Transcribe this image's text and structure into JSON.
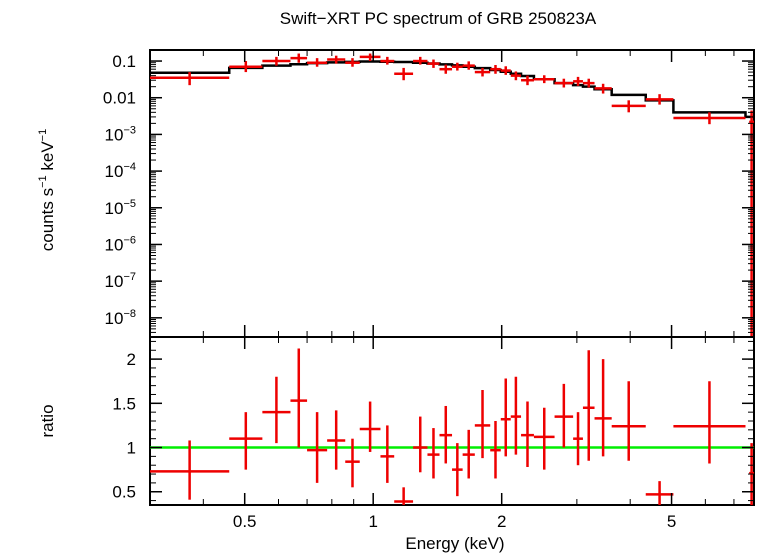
{
  "chart_data": {
    "title": "Swift−XRT PC spectrum of GRB 250823A",
    "xlabel": "Energy (keV)",
    "xscale": "log",
    "xlim": [
      0.3,
      7.8
    ],
    "x_ticks": [
      {
        "value": 0.5,
        "label": "0.5"
      },
      {
        "value": 1,
        "label": "1"
      },
      {
        "value": 2,
        "label": "2"
      },
      {
        "value": 5,
        "label": "5"
      }
    ],
    "colors": {
      "data": "#ee0000",
      "model": "#000000",
      "ratio_line": "#00ee00",
      "axes": "#000000"
    },
    "panels": [
      {
        "id": "spectrum",
        "type": "scatter",
        "ylabel_main": "counts s",
        "ylabel_exp": "−1",
        "ylabel_mid": " keV",
        "ylabel_exp2": "−1",
        "yscale": "log",
        "ylim": [
          3e-09,
          0.2
        ],
        "y_ticks": [
          {
            "value": 0.1,
            "base": "0.1",
            "exp": ""
          },
          {
            "value": 0.01,
            "base": "0.01",
            "exp": ""
          },
          {
            "value": 0.001,
            "base": "10",
            "exp": "−3"
          },
          {
            "value": 0.0001,
            "base": "10",
            "exp": "−4"
          },
          {
            "value": 1e-05,
            "base": "10",
            "exp": "−5"
          },
          {
            "value": 1e-06,
            "base": "10",
            "exp": "−6"
          },
          {
            "value": 1e-07,
            "base": "10",
            "exp": "−7"
          },
          {
            "value": 1e-08,
            "base": "10",
            "exp": "−8"
          }
        ],
        "points": [
          {
            "xlo": 0.3,
            "xhi": 0.46,
            "y": 0.035,
            "ylo": 0.022,
            "yhi": 0.05
          },
          {
            "xlo": 0.46,
            "xhi": 0.55,
            "y": 0.07,
            "ylo": 0.05,
            "yhi": 0.1
          },
          {
            "xlo": 0.55,
            "xhi": 0.64,
            "y": 0.1,
            "ylo": 0.075,
            "yhi": 0.13
          },
          {
            "xlo": 0.64,
            "xhi": 0.7,
            "y": 0.12,
            "ylo": 0.09,
            "yhi": 0.16
          },
          {
            "xlo": 0.7,
            "xhi": 0.78,
            "y": 0.09,
            "ylo": 0.07,
            "yhi": 0.12
          },
          {
            "xlo": 0.78,
            "xhi": 0.86,
            "y": 0.11,
            "ylo": 0.085,
            "yhi": 0.14
          },
          {
            "xlo": 0.86,
            "xhi": 0.93,
            "y": 0.09,
            "ylo": 0.07,
            "yhi": 0.12
          },
          {
            "xlo": 0.93,
            "xhi": 1.04,
            "y": 0.13,
            "ylo": 0.1,
            "yhi": 0.16
          },
          {
            "xlo": 1.04,
            "xhi": 1.12,
            "y": 0.1,
            "ylo": 0.08,
            "yhi": 0.13
          },
          {
            "xlo": 1.12,
            "xhi": 1.24,
            "y": 0.045,
            "ylo": 0.03,
            "yhi": 0.065
          },
          {
            "xlo": 1.24,
            "xhi": 1.34,
            "y": 0.1,
            "ylo": 0.08,
            "yhi": 0.13
          },
          {
            "xlo": 1.34,
            "xhi": 1.43,
            "y": 0.085,
            "ylo": 0.065,
            "yhi": 0.11
          },
          {
            "xlo": 1.43,
            "xhi": 1.53,
            "y": 0.06,
            "ylo": 0.045,
            "yhi": 0.08
          },
          {
            "xlo": 1.53,
            "xhi": 1.62,
            "y": 0.07,
            "ylo": 0.055,
            "yhi": 0.09
          },
          {
            "xlo": 1.62,
            "xhi": 1.73,
            "y": 0.075,
            "ylo": 0.058,
            "yhi": 0.098
          },
          {
            "xlo": 1.73,
            "xhi": 1.88,
            "y": 0.05,
            "ylo": 0.038,
            "yhi": 0.065
          },
          {
            "xlo": 1.88,
            "xhi": 1.99,
            "y": 0.06,
            "ylo": 0.045,
            "yhi": 0.078
          },
          {
            "xlo": 1.99,
            "xhi": 2.1,
            "y": 0.055,
            "ylo": 0.042,
            "yhi": 0.072
          },
          {
            "xlo": 2.1,
            "xhi": 2.22,
            "y": 0.04,
            "ylo": 0.03,
            "yhi": 0.052
          },
          {
            "xlo": 2.22,
            "xhi": 2.38,
            "y": 0.03,
            "ylo": 0.022,
            "yhi": 0.04
          },
          {
            "xlo": 2.38,
            "xhi": 2.66,
            "y": 0.032,
            "ylo": 0.025,
            "yhi": 0.041
          },
          {
            "xlo": 2.66,
            "xhi": 2.94,
            "y": 0.025,
            "ylo": 0.019,
            "yhi": 0.033
          },
          {
            "xlo": 2.94,
            "xhi": 3.1,
            "y": 0.028,
            "ylo": 0.021,
            "yhi": 0.037
          },
          {
            "xlo": 3.1,
            "xhi": 3.3,
            "y": 0.025,
            "ylo": 0.019,
            "yhi": 0.033
          },
          {
            "xlo": 3.3,
            "xhi": 3.62,
            "y": 0.018,
            "ylo": 0.013,
            "yhi": 0.024
          },
          {
            "xlo": 3.62,
            "xhi": 4.35,
            "y": 0.006,
            "ylo": 0.004,
            "yhi": 0.0085
          },
          {
            "xlo": 4.35,
            "xhi": 5.05,
            "y": 0.009,
            "ylo": 0.0065,
            "yhi": 0.0125
          },
          {
            "xlo": 5.05,
            "xhi": 7.45,
            "y": 0.0028,
            "ylo": 0.0019,
            "yhi": 0.004
          },
          {
            "xlo": 7.6,
            "xhi": 7.8,
            "y": 0.0022,
            "ylo": 3e-09,
            "yhi": 0.0045
          }
        ],
        "model": {
          "edges": [
            0.3,
            0.46,
            0.55,
            0.64,
            0.7,
            0.78,
            0.86,
            0.93,
            1.04,
            1.12,
            1.24,
            1.34,
            1.43,
            1.53,
            1.62,
            1.73,
            1.88,
            1.99,
            2.1,
            2.22,
            2.38,
            2.66,
            2.94,
            3.1,
            3.3,
            3.62,
            4.35,
            5.05,
            7.45,
            7.8
          ],
          "values": [
            0.048,
            0.065,
            0.075,
            0.082,
            0.088,
            0.092,
            0.095,
            0.097,
            0.096,
            0.094,
            0.09,
            0.086,
            0.081,
            0.076,
            0.07,
            0.064,
            0.057,
            0.051,
            0.045,
            0.039,
            0.032,
            0.025,
            0.022,
            0.02,
            0.017,
            0.012,
            0.0085,
            0.004,
            0.003
          ]
        }
      },
      {
        "id": "ratio",
        "type": "scatter",
        "ylabel": "ratio",
        "yscale": "linear",
        "ylim": [
          0.35,
          2.25
        ],
        "y_ticks": [
          {
            "value": 0.5,
            "label": "0.5"
          },
          {
            "value": 1,
            "label": "1"
          },
          {
            "value": 1.5,
            "label": "1.5"
          },
          {
            "value": 2,
            "label": "2"
          }
        ],
        "reference_line": 1,
        "points": [
          {
            "xlo": 0.3,
            "xhi": 0.46,
            "y": 0.73,
            "ylo": 0.41,
            "yhi": 1.08
          },
          {
            "xlo": 0.46,
            "xhi": 0.55,
            "y": 1.1,
            "ylo": 0.75,
            "yhi": 1.4
          },
          {
            "xlo": 0.55,
            "xhi": 0.64,
            "y": 1.4,
            "ylo": 1.05,
            "yhi": 1.8
          },
          {
            "xlo": 0.64,
            "xhi": 0.7,
            "y": 1.53,
            "ylo": 1.0,
            "yhi": 2.12
          },
          {
            "xlo": 0.7,
            "xhi": 0.78,
            "y": 0.97,
            "ylo": 0.6,
            "yhi": 1.4
          },
          {
            "xlo": 0.78,
            "xhi": 0.86,
            "y": 1.08,
            "ylo": 0.75,
            "yhi": 1.42
          },
          {
            "xlo": 0.86,
            "xhi": 0.93,
            "y": 0.84,
            "ylo": 0.55,
            "yhi": 1.1
          },
          {
            "xlo": 0.93,
            "xhi": 1.04,
            "y": 1.21,
            "ylo": 0.95,
            "yhi": 1.52
          },
          {
            "xlo": 1.04,
            "xhi": 1.12,
            "y": 0.9,
            "ylo": 0.6,
            "yhi": 1.25
          },
          {
            "xlo": 1.12,
            "xhi": 1.24,
            "y": 0.39,
            "ylo": 0.3,
            "yhi": 0.55
          },
          {
            "xlo": 1.24,
            "xhi": 1.34,
            "y": 1.0,
            "ylo": 0.72,
            "yhi": 1.35
          },
          {
            "xlo": 1.34,
            "xhi": 1.43,
            "y": 0.92,
            "ylo": 0.65,
            "yhi": 1.22
          },
          {
            "xlo": 1.43,
            "xhi": 1.53,
            "y": 1.14,
            "ylo": 0.82,
            "yhi": 1.47
          },
          {
            "xlo": 1.53,
            "xhi": 1.62,
            "y": 0.75,
            "ylo": 0.45,
            "yhi": 1.05
          },
          {
            "xlo": 1.62,
            "xhi": 1.73,
            "y": 0.92,
            "ylo": 0.65,
            "yhi": 1.2
          },
          {
            "xlo": 1.73,
            "xhi": 1.88,
            "y": 1.25,
            "ylo": 0.88,
            "yhi": 1.65
          },
          {
            "xlo": 1.88,
            "xhi": 1.99,
            "y": 0.97,
            "ylo": 0.65,
            "yhi": 1.3
          },
          {
            "xlo": 1.99,
            "xhi": 2.1,
            "y": 1.32,
            "ylo": 0.9,
            "yhi": 1.78
          },
          {
            "xlo": 2.1,
            "xhi": 2.22,
            "y": 1.35,
            "ylo": 0.92,
            "yhi": 1.8
          },
          {
            "xlo": 2.22,
            "xhi": 2.38,
            "y": 1.14,
            "ylo": 0.78,
            "yhi": 1.52
          },
          {
            "xlo": 2.38,
            "xhi": 2.66,
            "y": 1.12,
            "ylo": 0.75,
            "yhi": 1.45
          },
          {
            "xlo": 2.66,
            "xhi": 2.94,
            "y": 1.35,
            "ylo": 1.0,
            "yhi": 1.72
          },
          {
            "xlo": 2.94,
            "xhi": 3.1,
            "y": 1.1,
            "ylo": 0.8,
            "yhi": 1.4
          },
          {
            "xlo": 3.1,
            "xhi": 3.3,
            "y": 1.45,
            "ylo": 0.85,
            "yhi": 2.1
          },
          {
            "xlo": 3.3,
            "xhi": 3.62,
            "y": 1.33,
            "ylo": 0.9,
            "yhi": 2.0
          },
          {
            "xlo": 3.62,
            "xhi": 4.35,
            "y": 1.24,
            "ylo": 0.85,
            "yhi": 1.75
          },
          {
            "xlo": 4.35,
            "xhi": 5.05,
            "y": 0.47,
            "ylo": 0.35,
            "yhi": 0.62
          },
          {
            "xlo": 5.05,
            "xhi": 7.45,
            "y": 1.24,
            "ylo": 0.82,
            "yhi": 1.75
          },
          {
            "xlo": 7.6,
            "xhi": 7.8,
            "y": 0.71,
            "ylo": 0.35,
            "yhi": 1.05
          }
        ]
      }
    ]
  }
}
